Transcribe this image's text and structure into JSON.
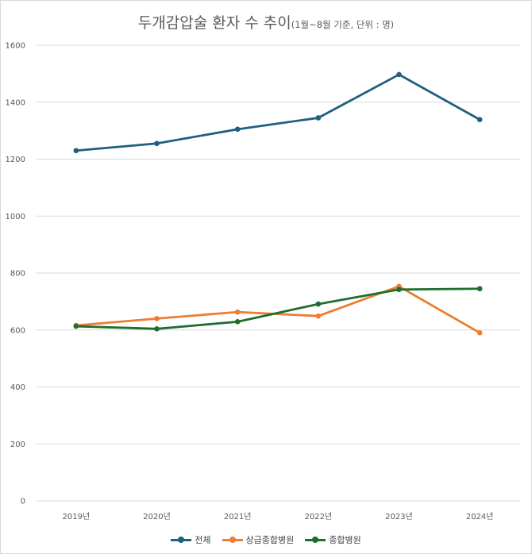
{
  "chart_data": {
    "type": "line",
    "title": "두개감압술 환자 수 추이",
    "subtitle": "(1월~8월 기준, 단위 : 명)",
    "categories": [
      "2019년",
      "2020년",
      "2021년",
      "2022년",
      "2023년",
      "2024년"
    ],
    "ylim": [
      0,
      1600
    ],
    "yticks": [
      0,
      200,
      400,
      600,
      800,
      1000,
      1200,
      1400,
      1600
    ],
    "grid": true,
    "legend_position": "bottom",
    "series": [
      {
        "name": "전체",
        "color": "#1f5f7f",
        "values": [
          1230,
          1255,
          1305,
          1345,
          1497,
          1339
        ]
      },
      {
        "name": "상급종합병원",
        "color": "#ed7d31",
        "values": [
          616,
          640,
          663,
          649,
          753,
          590
        ]
      },
      {
        "name": "종합병원",
        "color": "#1e6e2e",
        "values": [
          613,
          604,
          629,
          691,
          742,
          745
        ]
      }
    ]
  }
}
